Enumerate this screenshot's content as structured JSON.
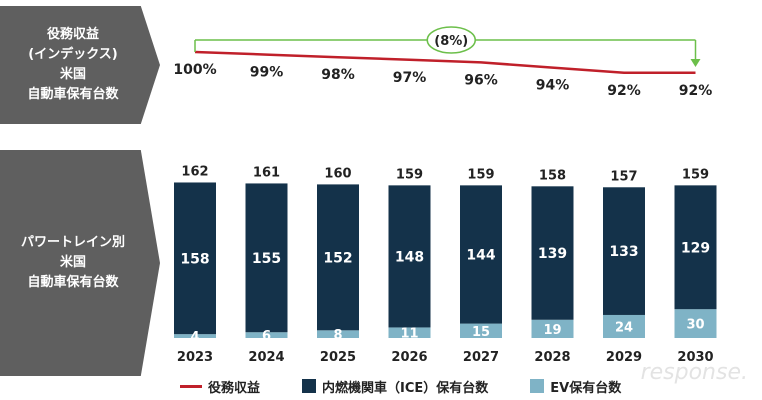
{
  "panels": {
    "top_lines": [
      "役務収益",
      "(インデックス)",
      "米国",
      "自動車保有台数"
    ],
    "bottom_lines": [
      "パワートレイン別",
      "米国",
      "自動車保有台数"
    ]
  },
  "colors": {
    "revenue_line": "#c0202a",
    "ice": "#14324a",
    "ev": "#7fb3c6",
    "bracket": "#6cbf4a",
    "panel": "#5f5f5f"
  },
  "top_callout": "(8%)",
  "watermark": "response.",
  "chart_data": [
    {
      "type": "line",
      "title": "",
      "x": [
        "2023",
        "2024",
        "2025",
        "2026",
        "2027",
        "2028",
        "2029",
        "2030"
      ],
      "series": [
        {
          "name": "役務収益",
          "values": [
            100,
            99,
            98,
            97,
            96,
            94,
            92,
            92
          ]
        }
      ],
      "labels": [
        "100%",
        "99%",
        "98%",
        "97%",
        "96%",
        "94%",
        "92%",
        "92%"
      ],
      "annotation": "(8%)",
      "unit": "%"
    },
    {
      "type": "bar",
      "stacked": true,
      "categories": [
        "2023",
        "2024",
        "2025",
        "2026",
        "2027",
        "2028",
        "2029",
        "2030"
      ],
      "series": [
        {
          "name": "内燃機関車（ICE）保有台数",
          "values": [
            158,
            155,
            152,
            148,
            144,
            139,
            133,
            129
          ]
        },
        {
          "name": "EV保有台数",
          "values": [
            4,
            6,
            8,
            11,
            15,
            19,
            24,
            30
          ]
        }
      ],
      "totals": [
        162,
        161,
        160,
        159,
        159,
        158,
        157,
        159
      ],
      "legend_position": "bottom",
      "grid": false
    }
  ]
}
